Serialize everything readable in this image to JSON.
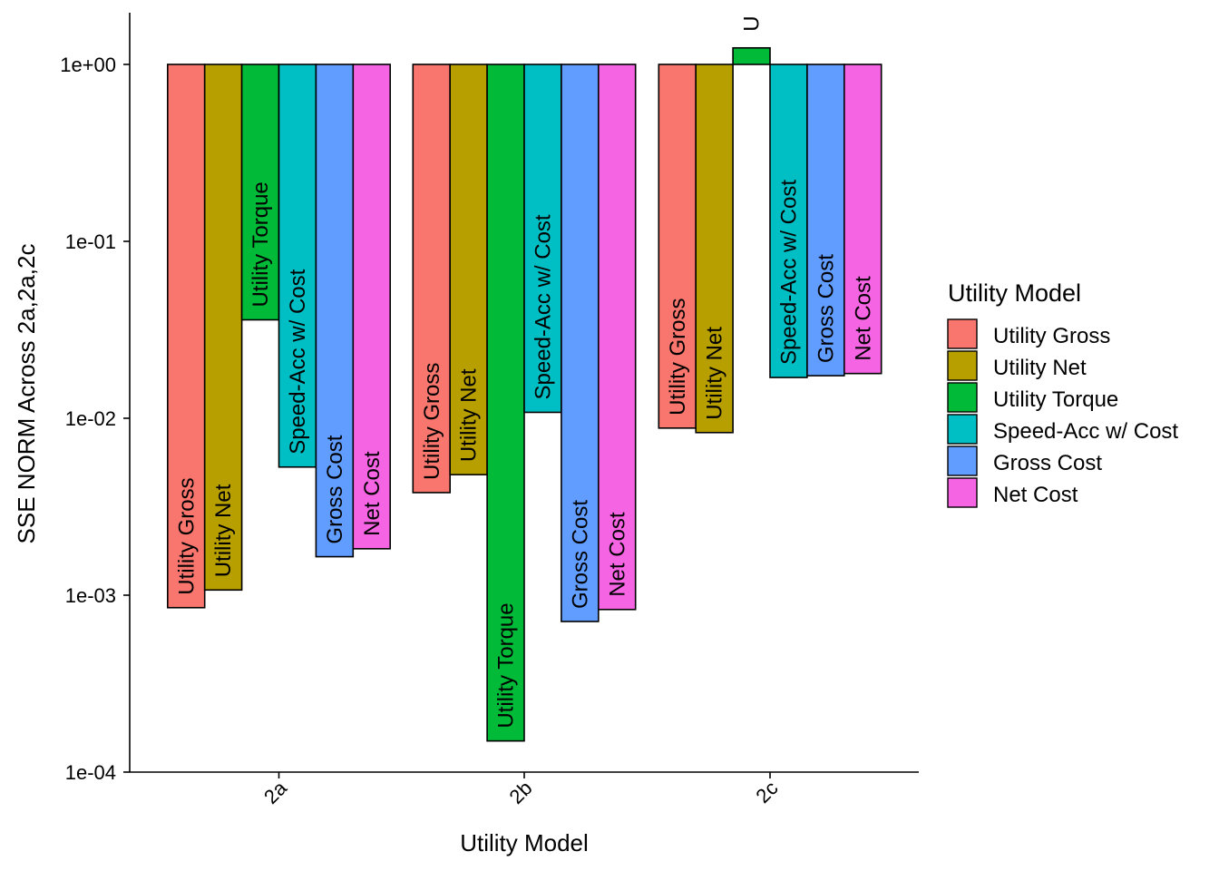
{
  "chart_data": {
    "type": "bar",
    "xlabel": "Utility Model",
    "ylabel": "SSE NORM Across 2a,2a,2c",
    "y_scale": "log10",
    "ylim": [
      0.0001,
      1.25
    ],
    "y_ticks": [
      {
        "value": 0.0001,
        "label": "1e-04"
      },
      {
        "value": 0.001,
        "label": "1e-03"
      },
      {
        "value": 0.01,
        "label": "1e-02"
      },
      {
        "value": 0.1,
        "label": "1e-01"
      },
      {
        "value": 1,
        "label": "1e+00"
      }
    ],
    "categories": [
      "2a",
      "2b",
      "2c"
    ],
    "grid": false,
    "legend": {
      "title": "Utility Model",
      "placement": "right",
      "entries": [
        "Utility Gross",
        "Utility Net",
        "Utility Torque",
        "Speed-Acc w/ Cost",
        "Gross Cost",
        "Net Cost"
      ]
    },
    "series": [
      {
        "name": "Utility Gross",
        "color": "#F8766D",
        "values": [
          0.00085,
          0.0038,
          0.0088
        ],
        "labels": [
          "Utility Gross",
          "Utility Gross",
          "Utility Gross"
        ]
      },
      {
        "name": "Utility Net",
        "color": "#B79F00",
        "values": [
          0.00107,
          0.0048,
          0.0083
        ],
        "labels": [
          "Utility Net",
          "Utility Net",
          "Utility Net"
        ]
      },
      {
        "name": "Utility Torque",
        "color": "#00BA38",
        "values": [
          0.036,
          0.00015,
          1.24
        ],
        "labels": [
          "Utility Torque",
          "Utility Torque",
          "U"
        ]
      },
      {
        "name": "Speed-Acc w/ Cost",
        "color": "#00BFC4",
        "values": [
          0.0053,
          0.0108,
          0.017
        ],
        "labels": [
          "Speed-Acc w/ Cost",
          "Speed-Acc w/ Cost",
          "Speed-Acc w/ Cost"
        ]
      },
      {
        "name": "Gross Cost",
        "color": "#619CFF",
        "values": [
          0.00165,
          0.00071,
          0.0174
        ],
        "labels": [
          "Gross Cost",
          "Gross Cost",
          "Gross Cost"
        ]
      },
      {
        "name": "Net Cost",
        "color": "#F564E3",
        "values": [
          0.00183,
          0.00083,
          0.0179
        ],
        "labels": [
          "Net Cost",
          "Net Cost",
          "Net Cost"
        ]
      }
    ]
  }
}
